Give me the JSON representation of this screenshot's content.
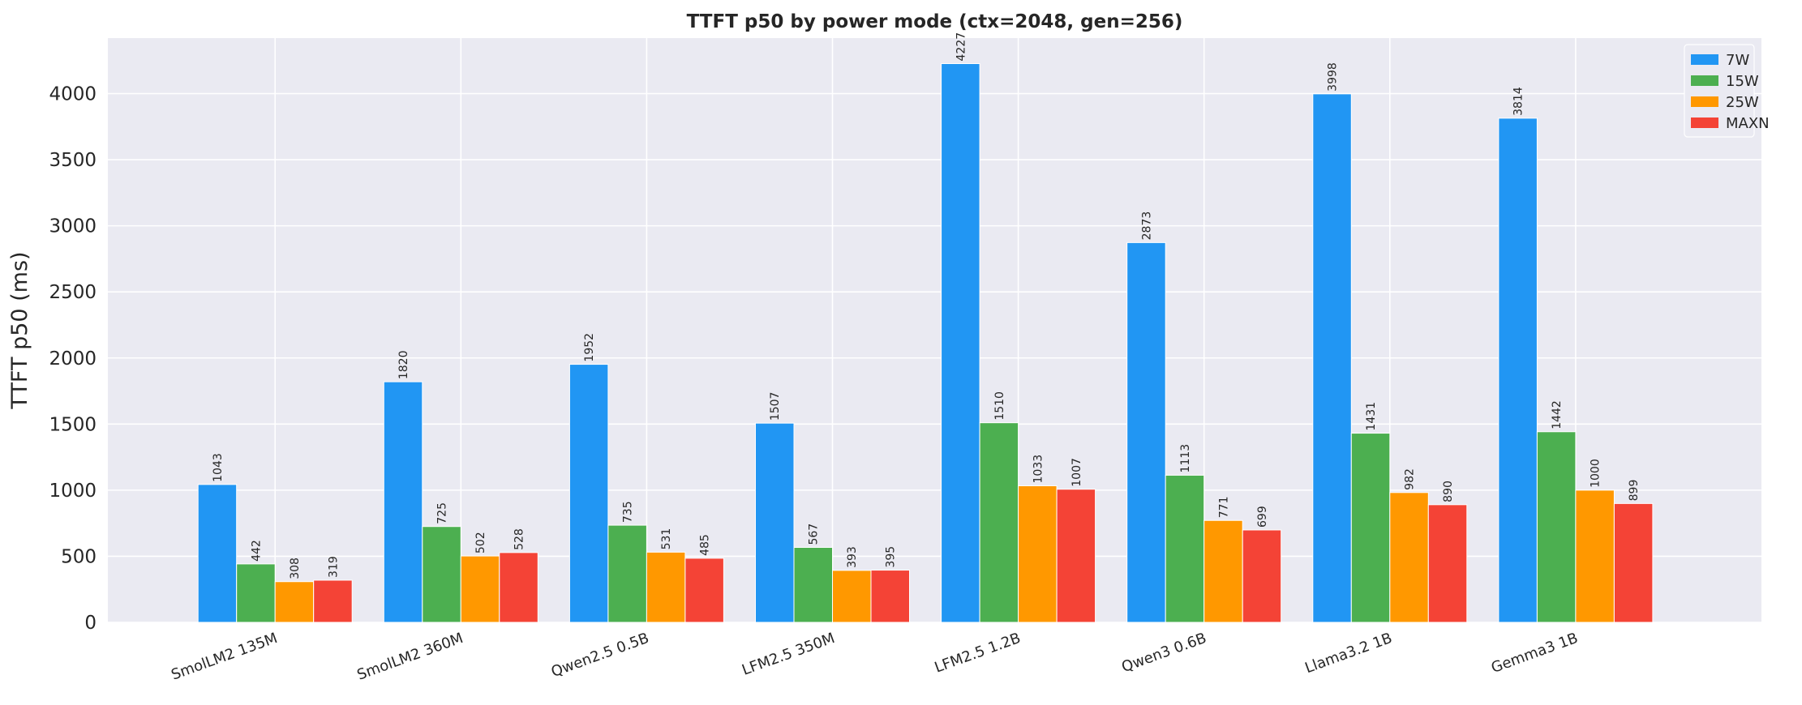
{
  "chart_data": {
    "type": "bar",
    "title": "TTFT p50 by power mode (ctx=2048, gen=256)",
    "xlabel": "",
    "ylabel": "TTFT p50 (ms)",
    "ylim": [
      0,
      4420
    ],
    "yticks": [
      0,
      500,
      1000,
      1500,
      2000,
      2500,
      3000,
      3500,
      4000
    ],
    "grid": true,
    "legend_position": "top-right",
    "categories": [
      "SmolLM2 135M",
      "SmolLM2 360M",
      "Qwen2.5 0.5B",
      "LFM2.5 350M",
      "LFM2.5 1.2B",
      "Qwen3 0.6B",
      "Llama3.2 1B",
      "Gemma3 1B"
    ],
    "series": [
      {
        "name": "7W",
        "color": "#2196F3",
        "values": [
          1043,
          1820,
          1952,
          1507,
          4227,
          2873,
          3998,
          3814
        ]
      },
      {
        "name": "15W",
        "color": "#4CAF50",
        "values": [
          442,
          725,
          735,
          567,
          1510,
          1113,
          1431,
          1442
        ]
      },
      {
        "name": "25W",
        "color": "#FF9800",
        "values": [
          308,
          502,
          531,
          393,
          1033,
          771,
          982,
          1000
        ]
      },
      {
        "name": "MAXN",
        "color": "#F44336",
        "values": [
          319,
          528,
          485,
          395,
          1007,
          699,
          890,
          899
        ]
      }
    ]
  }
}
